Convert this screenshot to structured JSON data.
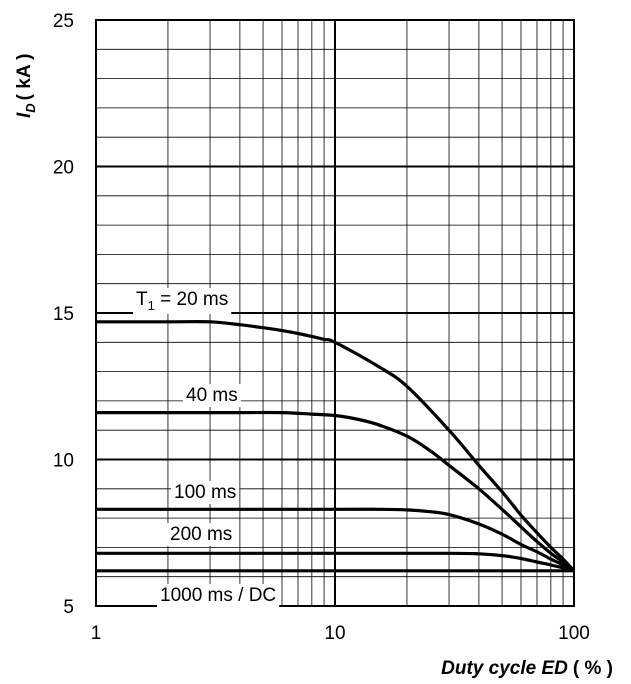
{
  "chart_data": {
    "type": "line",
    "title": "",
    "ylabel_main": "I",
    "ylabel_sub": "D",
    "ylabel_unit": "( kA )",
    "xlabel_main": "Duty cycle ED",
    "xlabel_unit": "( % )",
    "xscale": "log",
    "xlim": [
      1,
      100
    ],
    "ylim": [
      5,
      25
    ],
    "xticks": [
      "1",
      "10",
      "100"
    ],
    "yticks": [
      "5",
      "10",
      "15",
      "20",
      "25"
    ],
    "grid": true,
    "series": [
      {
        "label_main": "T",
        "label_sub": "1",
        "label_rest": " = 20 ms",
        "x": [
          1,
          2,
          3,
          4,
          5,
          6,
          7,
          8,
          9,
          10,
          15,
          20,
          30,
          40,
          50,
          60,
          70,
          80,
          90,
          100
        ],
        "y": [
          14.7,
          14.7,
          14.7,
          14.6,
          14.5,
          14.4,
          14.3,
          14.2,
          14.1,
          14.0,
          13.2,
          12.5,
          11.0,
          9.8,
          8.9,
          8.1,
          7.5,
          7.0,
          6.6,
          6.2
        ]
      },
      {
        "label_main": "40 ms",
        "x": [
          1,
          2,
          4,
          6,
          8,
          10,
          12,
          15,
          20,
          25,
          30,
          40,
          50,
          60,
          70,
          80,
          90,
          100
        ],
        "y": [
          11.6,
          11.6,
          11.6,
          11.6,
          11.55,
          11.5,
          11.4,
          11.2,
          10.8,
          10.3,
          9.8,
          9.0,
          8.3,
          7.7,
          7.2,
          6.8,
          6.5,
          6.2
        ]
      },
      {
        "label_main": "100 ms",
        "x": [
          1,
          5,
          10,
          15,
          20,
          25,
          30,
          40,
          50,
          60,
          70,
          80,
          90,
          100
        ],
        "y": [
          8.3,
          8.3,
          8.3,
          8.3,
          8.28,
          8.22,
          8.12,
          7.8,
          7.45,
          7.1,
          6.85,
          6.6,
          6.4,
          6.2
        ]
      },
      {
        "label_main": "200 ms",
        "x": [
          1,
          10,
          30,
          40,
          50,
          60,
          70,
          80,
          90,
          100
        ],
        "y": [
          6.8,
          6.8,
          6.8,
          6.78,
          6.72,
          6.62,
          6.5,
          6.4,
          6.3,
          6.2
        ]
      },
      {
        "label_main": "1000 ms / DC",
        "x": [
          1,
          100
        ],
        "y": [
          6.2,
          6.2
        ]
      }
    ]
  }
}
